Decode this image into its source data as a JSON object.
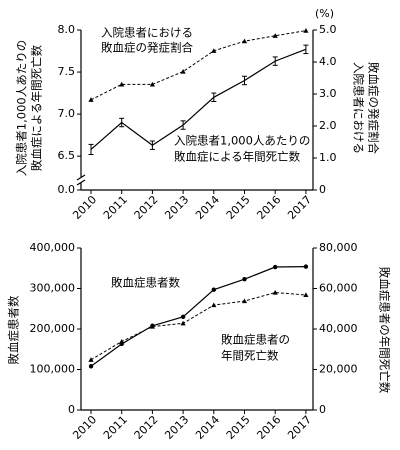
{
  "chart_data": [
    {
      "type": "line",
      "title": "",
      "x": [
        "2010",
        "2011",
        "2012",
        "2013",
        "2014",
        "2015",
        "2016",
        "2017"
      ],
      "ylabel_left": "入院患者1,000人あたりの敗血症による年間死亡数",
      "ylabel_right": "入院患者における敗血症の発症割合",
      "right_unit": "(%)",
      "yticks_left": [
        "0.0",
        "6.5",
        "7.0",
        "7.5",
        "8.0"
      ],
      "yticks_right": [
        "0",
        "1.0",
        "2.0",
        "3.0",
        "4.0",
        "5.0"
      ],
      "ylim_left": [
        6.3,
        8.0
      ],
      "ylim_right": [
        0,
        5.0
      ],
      "axis_break": true,
      "series": [
        {
          "name": "入院患者1,000人あたりの敗血症による年間死亡数",
          "axis": "left",
          "style": "solid",
          "marker": "none",
          "errorbars": true,
          "values": [
            6.58,
            6.9,
            6.63,
            6.87,
            7.2,
            7.4,
            7.63,
            7.77
          ],
          "errors": [
            0.06,
            0.05,
            0.05,
            0.05,
            0.05,
            0.05,
            0.05,
            0.05
          ]
        },
        {
          "name": "入院患者における敗血症の発症割合",
          "axis": "right",
          "style": "dashed",
          "marker": "triangle",
          "values": [
            2.82,
            3.3,
            3.3,
            3.7,
            4.35,
            4.65,
            4.82,
            4.98
          ]
        }
      ],
      "annotations": [
        {
          "lines": [
            "入院患者における",
            "敗血症の発症割合"
          ]
        },
        {
          "lines": [
            "入院患者1,000人あたりの",
            "敗血症による年間死亡数"
          ]
        }
      ]
    },
    {
      "type": "line",
      "title": "",
      "x": [
        "2010",
        "2011",
        "2012",
        "2013",
        "2014",
        "2015",
        "2016",
        "2017"
      ],
      "ylabel_left": "敗血症患者数",
      "ylabel_right": "敗血症患者の年間死亡数",
      "yticks_left": [
        "0",
        "100,000",
        "200,000",
        "300,000",
        "400,000"
      ],
      "yticks_right": [
        "0",
        "20,000",
        "40,000",
        "60,000",
        "80,000"
      ],
      "ylim_left": [
        0,
        400000
      ],
      "ylim_right": [
        0,
        80000
      ],
      "series": [
        {
          "name": "敗血症患者数",
          "axis": "left",
          "style": "solid",
          "marker": "circle",
          "values": [
            108000,
            163000,
            208000,
            230000,
            297000,
            323000,
            353000,
            354000
          ]
        },
        {
          "name": "敗血症患者の年間死亡数",
          "axis": "right",
          "style": "dashed",
          "marker": "triangle",
          "values": [
            24800,
            33800,
            41200,
            42800,
            51800,
            53800,
            58000,
            56800
          ]
        }
      ],
      "annotations": [
        {
          "lines": [
            "敗血症患者数"
          ]
        },
        {
          "lines": [
            "敗血症患者の",
            "年間死亡数"
          ]
        }
      ]
    }
  ]
}
